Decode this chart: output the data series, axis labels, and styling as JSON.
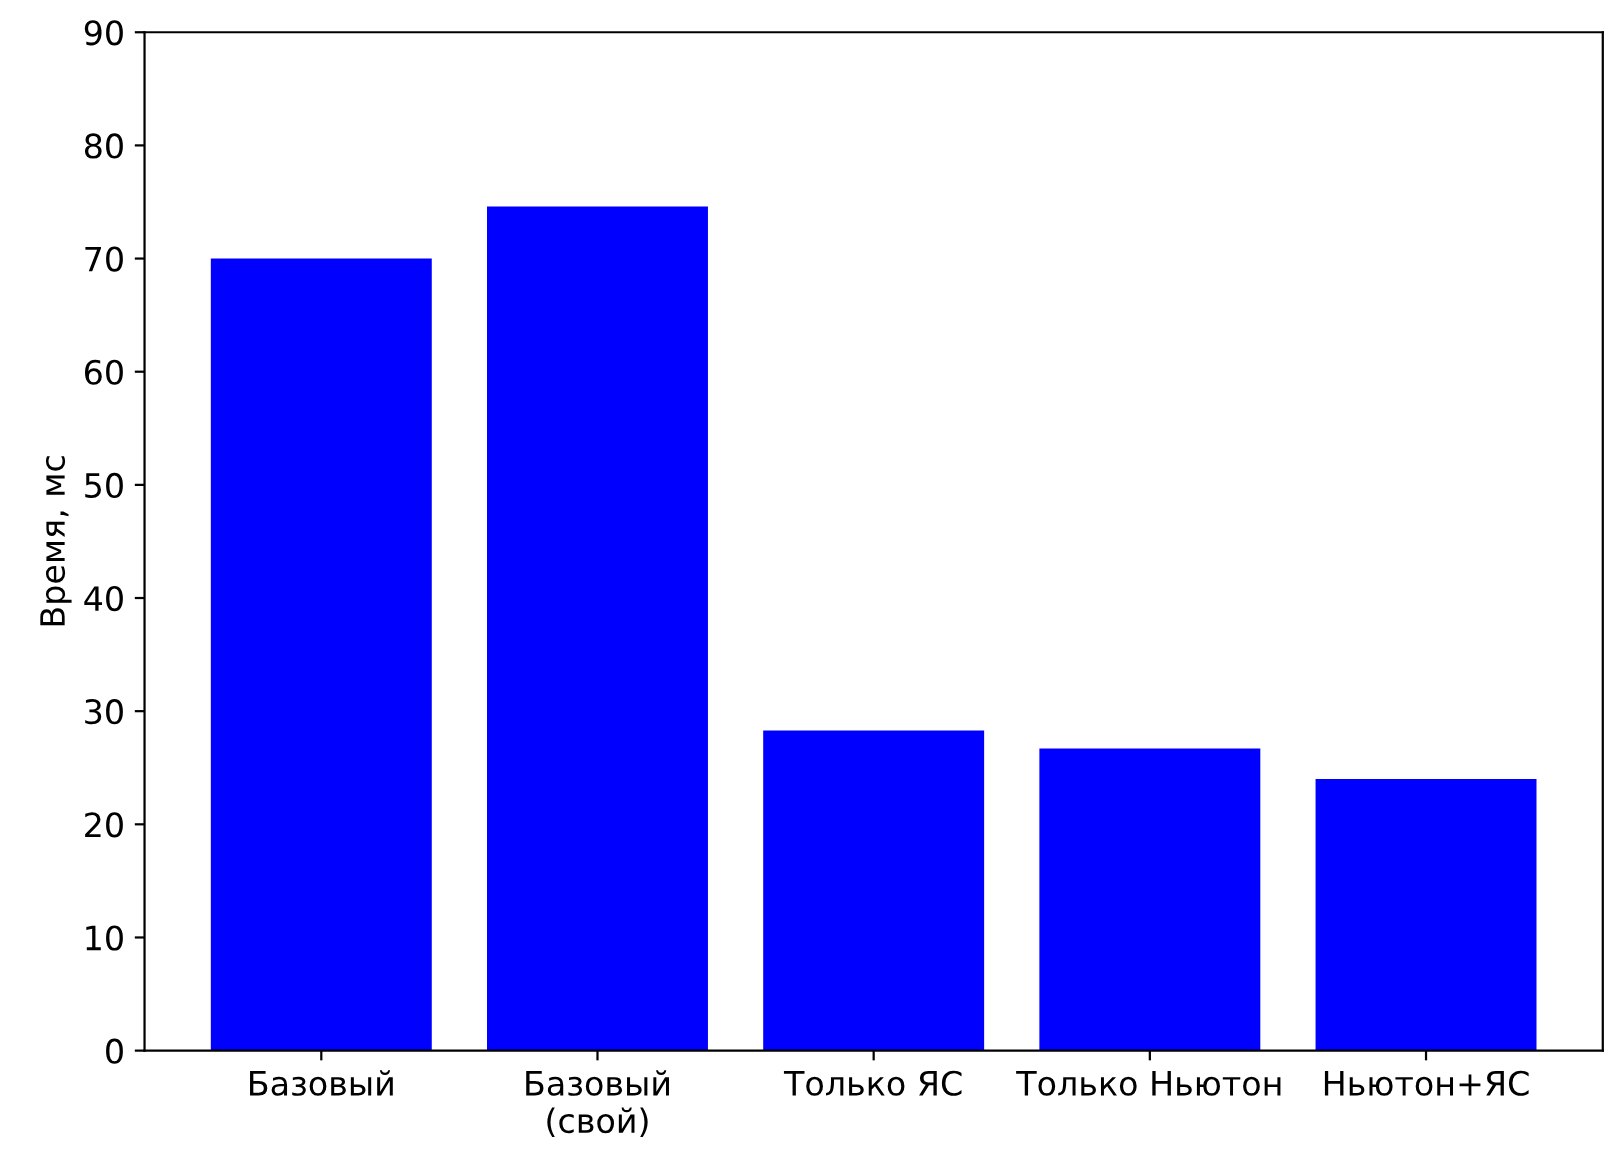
{
  "chart_data": {
    "type": "bar",
    "ylabel": "Время, мс",
    "categories": [
      "Базовый",
      "Базовый\n(свой)",
      "Только ЯС",
      "Только Ньютон",
      "Ньютон+ЯС"
    ],
    "values": [
      70.0,
      74.6,
      28.3,
      26.7,
      24.0
    ],
    "color": "#0000ff",
    "ylim": [
      0,
      90
    ],
    "yticks": [
      0,
      10,
      20,
      30,
      40,
      50,
      60,
      70,
      80,
      90
    ],
    "grid": false,
    "legend": false
  }
}
